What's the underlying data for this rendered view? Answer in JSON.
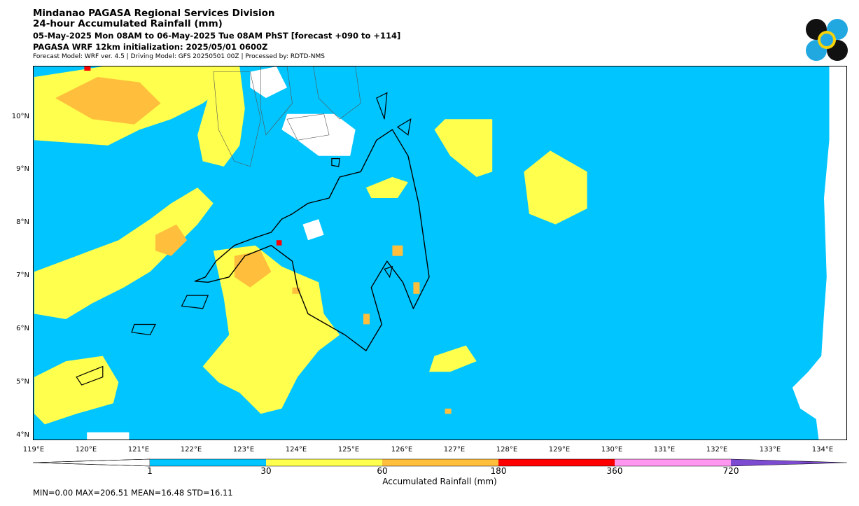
{
  "header": {
    "title_line1": "Mindanao PAGASA Regional Services Division",
    "title_line2": "24-hour Accumulated Rainfall (mm)",
    "period": "05-May-2025 Mon 08AM to 06-May-2025 Tue 08AM PhST [forecast +090 to +114]",
    "init": "PAGASA WRF 12km initialization: 2025/05/01 0600Z",
    "credits": "Forecast Model: WRF ver. 4.5 | Driving Model: GFS 20250501 00Z | Processed by: RDTD-NMS"
  },
  "map": {
    "lon_range": [
      119,
      134.5
    ],
    "lat_range": [
      3.9,
      11.0
    ],
    "lat_labels": [
      "10°N",
      "9°N",
      "8°N",
      "7°N",
      "6°N",
      "5°N",
      "4°N"
    ],
    "lon_labels": [
      "119°E",
      "120°E",
      "121°E",
      "122°E",
      "123°E",
      "124°E",
      "125°E",
      "126°E",
      "127°E",
      "128°E",
      "129°E",
      "130°E",
      "131°E",
      "132°E",
      "133°E",
      "134°E"
    ],
    "colors": {
      "below_1": "#ffffff",
      "r1_30": "#00c5ff",
      "r30_60": "#ffff4d",
      "r60_180": "#ffbe3c",
      "r180_360": "#ff0000",
      "r360_720": "#ff96f0",
      "r720_plus": "#7d4bd2",
      "coast_major": "#000000",
      "coast_minor": "#555555"
    }
  },
  "colorbar": {
    "tick_labels": [
      "1",
      "30",
      "60",
      "180",
      "360",
      "720"
    ],
    "title": "Accumulated Rainfall (mm)"
  },
  "stats": {
    "text": "MIN=0.00   MAX=206.51   MEAN=16.48   STD=16.11"
  },
  "logo": {
    "icon": "pagasa-logo-icon",
    "colors": {
      "blue": "#22a8e0",
      "black": "#111111",
      "yellow": "#f5d20a"
    }
  }
}
